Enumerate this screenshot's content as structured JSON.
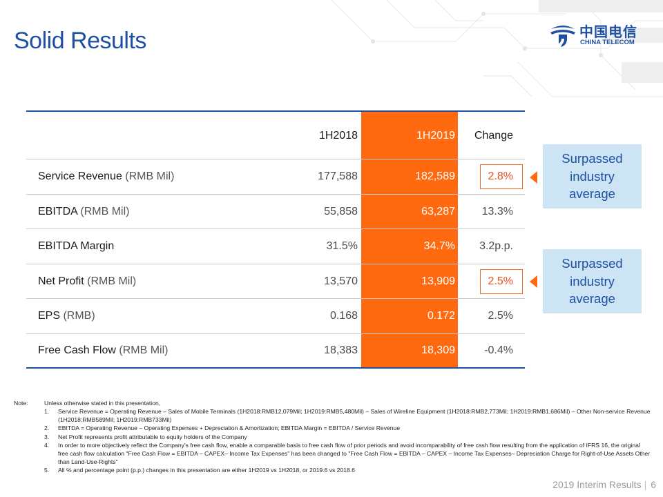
{
  "page": {
    "title": "Solid Results",
    "logo": {
      "chinese": "中国电信",
      "english": "CHINA TELECOM"
    },
    "footer": {
      "section": "2019 Interim Results",
      "page_number": "6"
    }
  },
  "table": {
    "headers": {
      "label": "",
      "col_2018": "1H2018",
      "col_2019": "1H2019",
      "change": "Change"
    },
    "rows": [
      {
        "label": "Service Revenue",
        "unit": "(RMB Mil)",
        "v2018": "177,588",
        "v2019": "182,589",
        "change": "2.8%",
        "highlighted": true
      },
      {
        "label": "EBITDA",
        "unit": "(RMB Mil)",
        "v2018": "55,858",
        "v2019": "63,287",
        "change": "13.3%",
        "highlighted": false
      },
      {
        "label": "EBITDA Margin",
        "unit": "",
        "v2018": "31.5%",
        "v2019": "34.7%",
        "change": "3.2p.p.",
        "highlighted": false
      },
      {
        "label": "Net Profit",
        "unit": "(RMB Mil)",
        "v2018": "13,570",
        "v2019": "13,909",
        "change": "2.5%",
        "highlighted": true
      },
      {
        "label": "EPS",
        "unit": "(RMB)",
        "v2018": "0.168",
        "v2019": "0.172",
        "change": "2.5%",
        "highlighted": false
      },
      {
        "label": "Free Cash Flow",
        "unit": "(RMB Mil)",
        "v2018": "18,383",
        "v2019": "18,309",
        "change": "-0.4%",
        "highlighted": false
      }
    ]
  },
  "callouts": [
    {
      "text": "Surpassed industry average"
    },
    {
      "text": "Surpassed industry average"
    }
  ],
  "notes": {
    "label": "Note:",
    "intro": "Unless otherwise stated in this presentation,",
    "items": [
      {
        "num": "1.",
        "text": "Service Revenue = Operating Revenue – Sales of Mobile Terminals (1H2018:RMB12,079Mil; 1H2019:RMB5,480Mil) – Sales of Wireline Equipment (1H2018:RMB2,773Mil; 1H2019:RMB1,686Mil) – Other Non-service Revenue (1H2018:RMB589Mil; 1H2019:RMB733Mil)"
      },
      {
        "num": "2.",
        "text": "EBITDA = Operating Revenue – Operating Expenses + Depreciation & Amortization; EBITDA Margin = EBITDA / Service Revenue"
      },
      {
        "num": "3.",
        "text": "Net Profit represents profit attributable to equity holders of the Company"
      },
      {
        "num": "4.",
        "text": "In order to more objectively reflect the Company's free cash flow, enable a comparable basis to free cash flow of prior periods and avoid incomparability of free cash flow resulting from the application of IFRS 16, the original free cash flow calculation \"Free Cash Flow = EBITDA – CAPEX– Income Tax Expenses\" has been changed to \"Free Cash Flow = EBITDA – CAPEX – Income Tax Expenses– Depreciation Charge for Right-of-Use Assets Other than Land-Use-Rights\""
      },
      {
        "num": "5.",
        "text": "All % and percentage point (p.p.) changes in this presentation are either 1H2019 vs 1H2018, or 2019.6 vs 2018.6"
      }
    ]
  },
  "colors": {
    "brand_blue": "#1e4fa3",
    "highlight_orange": "#ff6a10",
    "callout_bg": "#cde4f5"
  }
}
